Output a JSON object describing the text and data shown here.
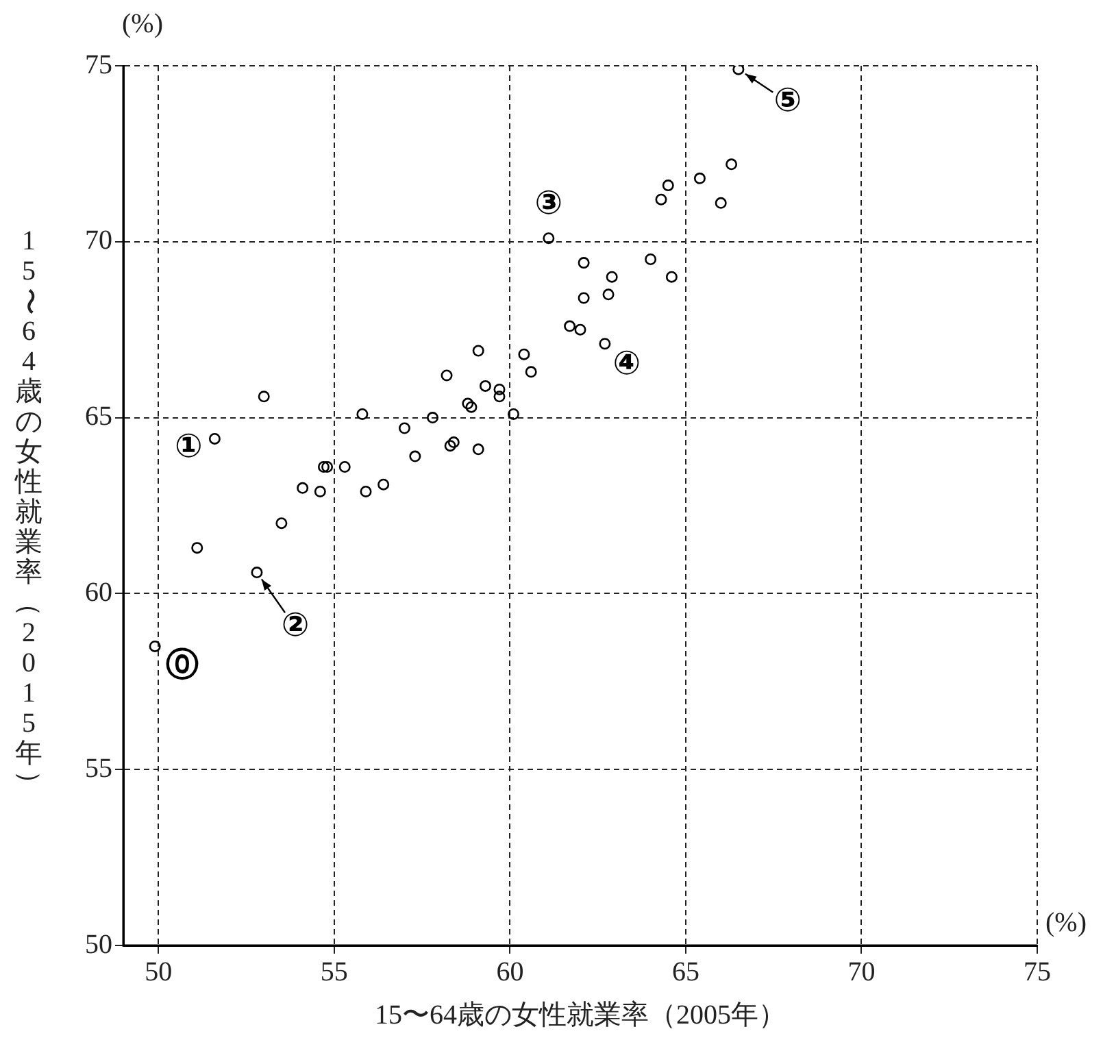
{
  "chart_data": {
    "type": "scatter",
    "xlabel": "15〜64歳の女性就業率（2005年）",
    "ylabel": "15〜64歳の女性就業率（2015年）",
    "x": [
      49.9,
      51.1,
      52.8,
      51.6,
      53.0,
      53.5,
      54.1,
      54.6,
      54.7,
      54.8,
      55.3,
      55.9,
      55.8,
      56.4,
      57.0,
      57.3,
      57.8,
      58.3,
      58.4,
      58.2,
      58.8,
      58.9,
      59.1,
      59.1,
      59.3,
      59.7,
      59.7,
      60.1,
      60.4,
      60.6,
      61.1,
      61.7,
      62.0,
      62.1,
      62.1,
      62.7,
      62.8,
      62.9,
      64.0,
      64.6,
      64.3,
      64.5,
      65.4,
      66.0,
      66.3,
      66.5
    ],
    "series": [
      {
        "color": "#000000",
        "values": [
          58.5,
          61.3,
          60.6,
          64.4,
          65.6,
          62.0,
          63.0,
          62.9,
          63.6,
          63.6,
          63.6,
          62.9,
          65.1,
          63.1,
          64.7,
          63.9,
          65.0,
          64.2,
          64.3,
          66.2,
          65.4,
          65.3,
          64.1,
          66.9,
          65.9,
          65.8,
          65.6,
          65.1,
          66.8,
          66.3,
          70.1,
          67.6,
          67.5,
          69.4,
          68.4,
          67.1,
          68.5,
          69.0,
          69.5,
          69.0,
          71.2,
          71.6,
          71.8,
          71.1,
          72.2,
          74.9
        ]
      }
    ],
    "xlim": [
      49,
      75
    ],
    "xticks": [
      50,
      55,
      60,
      65,
      70,
      75
    ],
    "ylim": [
      50,
      75
    ],
    "yticks": [
      50,
      55,
      60,
      65,
      70,
      75
    ],
    "grid": true,
    "marker": "circle",
    "legend": false,
    "annotations": [
      {
        "text": "⓪",
        "x": 49.9,
        "y": 58.5
      },
      {
        "text": "①",
        "x": 51.6,
        "y": 64.4
      },
      {
        "text": "②",
        "x": 52.8,
        "y": 60.6
      },
      {
        "text": "③",
        "x": 61.1,
        "y": 70.1
      },
      {
        "text": "④",
        "x": 62.7,
        "y": 67.1
      },
      {
        "text": "⑤",
        "x": 66.5,
        "y": 74.9
      },
      "(%)",
      "(%)"
    ]
  }
}
